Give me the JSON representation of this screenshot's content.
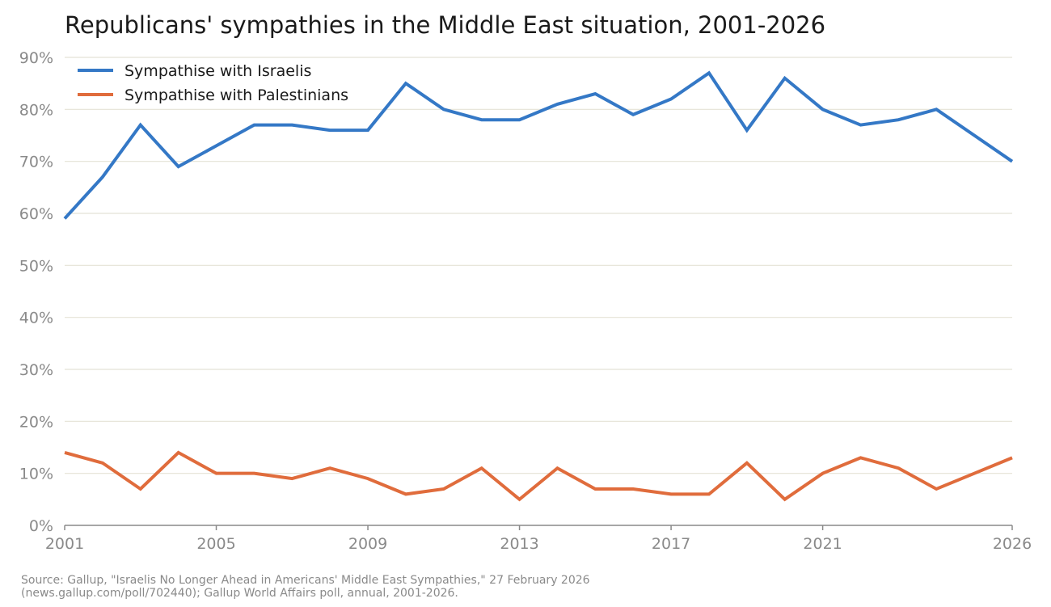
{
  "chart_data": {
    "type": "line",
    "title": "Republicans' sympathies in the Middle East situation, 2001-2026",
    "xlabel": "",
    "ylabel": "",
    "x": [
      2001,
      2002,
      2003,
      2004,
      2005,
      2006,
      2007,
      2008,
      2009,
      2010,
      2011,
      2012,
      2013,
      2014,
      2015,
      2016,
      2017,
      2018,
      2019,
      2020,
      2021,
      2022,
      2023,
      2024,
      2025,
      2026
    ],
    "xlim": [
      2001,
      2026
    ],
    "xticks": [
      2001,
      2005,
      2009,
      2013,
      2017,
      2021,
      2026
    ],
    "ylim": [
      0,
      90
    ],
    "yticks": [
      0,
      10,
      20,
      30,
      40,
      50,
      60,
      70,
      80,
      90
    ],
    "ytick_labels": [
      "0%",
      "10%",
      "20%",
      "30%",
      "40%",
      "50%",
      "60%",
      "70%",
      "80%",
      "90%"
    ],
    "grid": "horizontal",
    "legend_position": "top-left",
    "series": [
      {
        "name": "Sympathise with Israelis",
        "color": "#3478c6",
        "values": [
          59,
          67,
          77,
          69,
          73,
          77,
          77,
          76,
          76,
          85,
          80,
          78,
          78,
          81,
          83,
          79,
          82,
          87,
          76,
          86,
          80,
          77,
          78,
          80,
          75,
          70
        ]
      },
      {
        "name": "Sympathise with Palestinians",
        "color": "#e06c3c",
        "values": [
          14,
          12,
          7,
          14,
          10,
          10,
          9,
          11,
          9,
          6,
          7,
          11,
          5,
          11,
          7,
          7,
          6,
          6,
          12,
          5,
          10,
          13,
          11,
          7,
          10,
          13
        ]
      }
    ],
    "source": "Source: Gallup, \"Israelis No Longer Ahead in Americans' Middle East Sympathies,\" 27 February 2026\n(news.gallup.com/poll/702440); Gallup World Affairs poll, annual, 2001-2026."
  }
}
